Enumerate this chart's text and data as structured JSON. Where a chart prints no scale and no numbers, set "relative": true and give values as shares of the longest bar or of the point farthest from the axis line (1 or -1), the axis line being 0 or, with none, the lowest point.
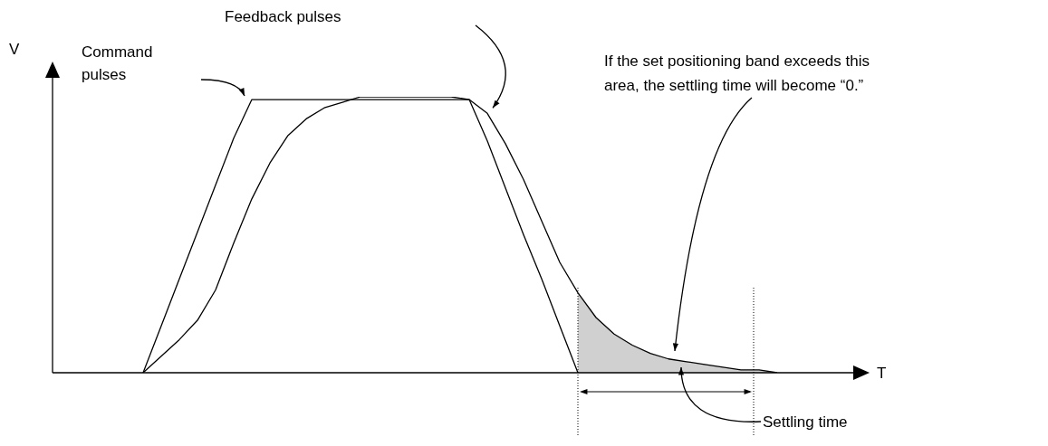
{
  "chart_data": {
    "type": "line",
    "relative": true,
    "xlabel": "T",
    "ylabel": "V",
    "legend": false,
    "grid": false,
    "marker": "none",
    "categories": [
      null,
      null,
      null,
      null,
      null,
      null,
      null,
      null,
      null,
      null,
      null,
      null,
      null,
      null,
      null,
      null,
      null,
      null,
      null,
      null,
      null,
      null,
      null,
      null,
      null,
      null,
      null,
      null,
      null,
      null,
      null,
      null,
      null,
      null,
      null,
      null,
      null,
      null,
      null,
      null,
      null,
      null,
      null,
      null,
      null,
      null
    ],
    "series": [
      {
        "type": "area",
        "color": "#d0d0d0",
        "values": [
          null,
          null,
          null,
          null,
          null,
          null,
          null,
          null,
          null,
          null,
          null,
          null,
          null,
          null,
          null,
          null,
          null,
          null,
          null,
          null,
          null,
          null,
          null,
          null,
          null,
          null,
          null,
          null,
          null,
          0.29,
          0.2,
          0.14,
          0.1,
          0.07,
          0.05,
          0.04,
          0.03,
          0.02,
          0.01,
          0.01,
          0,
          null,
          null,
          null,
          null,
          null
        ]
      },
      {
        "color": "#000000",
        "values": [
          null,
          null,
          null,
          null,
          null,
          0,
          0.17,
          0.34,
          0.51,
          0.68,
          0.85,
          0.99,
          0.99,
          0.99,
          0.99,
          0.99,
          0.99,
          0.99,
          0.99,
          0.99,
          0.99,
          0.99,
          0.99,
          0.99,
          0.84,
          0.67,
          0.5,
          0.34,
          0.17,
          0,
          null,
          null,
          null,
          null,
          null,
          null,
          null,
          null,
          null,
          null,
          null,
          null,
          null,
          null,
          null,
          null
        ]
      },
      {
        "color": "#000000",
        "values": [
          null,
          null,
          null,
          null,
          null,
          0,
          0.06,
          0.12,
          0.19,
          0.3,
          0.47,
          0.63,
          0.76,
          0.86,
          0.92,
          0.96,
          0.98,
          1,
          1,
          1,
          1,
          1,
          1,
          0.99,
          0.94,
          0.83,
          0.7,
          0.55,
          0.4,
          0.29,
          0.2,
          0.14,
          0.1,
          0.07,
          0.05,
          0.04,
          0.03,
          0.02,
          0.01,
          0.01,
          0,
          null,
          null,
          null,
          null,
          null
        ]
      }
    ],
    "annotations": [
      "Command pulses",
      "Feedback pulses",
      "If the set positioning band exceeds this area, the settling time will become “0.”",
      "Settling time"
    ]
  }
}
